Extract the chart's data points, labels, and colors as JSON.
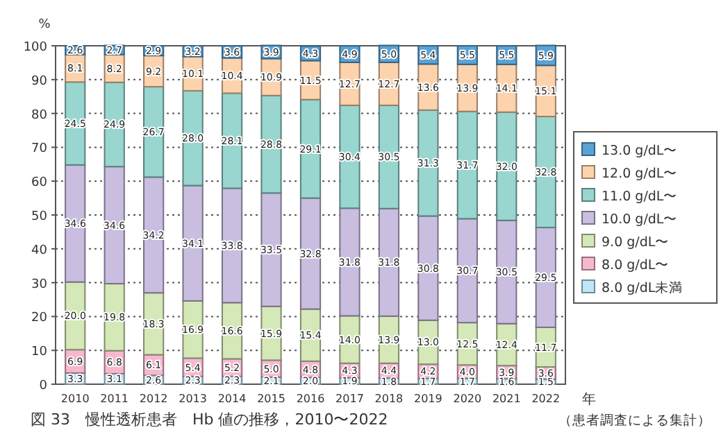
{
  "chart_data": {
    "type": "bar",
    "stacked": true,
    "title": "図 33　慢性透析患者　Hb 値の推移，2010〜2022",
    "xlabel": "年",
    "ylabel": "%",
    "annotations": [
      "（患者調査による集計）"
    ],
    "categories": [
      "2010",
      "2011",
      "2012",
      "2013",
      "2014",
      "2015",
      "2016",
      "2017",
      "2018",
      "2019",
      "2020",
      "2021",
      "2022"
    ],
    "ylim": [
      0,
      100
    ],
    "yticks": [
      0,
      10,
      20,
      30,
      40,
      50,
      60,
      70,
      80,
      90,
      100
    ],
    "grid": "y",
    "legend": "right",
    "series": [
      {
        "name": "8.0 g/dL未満",
        "color": "#bfe6f7",
        "values": [
          3.3,
          3.1,
          2.6,
          2.3,
          2.3,
          2.1,
          2.0,
          1.9,
          1.8,
          1.7,
          1.7,
          1.6,
          1.5
        ],
        "value_labels": [
          "3.3",
          "3.1",
          "2.6",
          "2.3",
          "2.3",
          "2.1",
          "2.0",
          "1.9",
          "1.8",
          "1.7",
          "1.7",
          "1.6",
          "1.5"
        ]
      },
      {
        "name": "8.0 g/dL〜",
        "color": "#f7b8cf",
        "values": [
          6.9,
          6.8,
          6.1,
          5.4,
          5.2,
          5.0,
          4.8,
          4.3,
          4.4,
          4.2,
          4.0,
          3.9,
          3.6
        ],
        "value_labels": [
          "6.9",
          "6.8",
          "6.1",
          "5.4",
          "5.2",
          "5.0",
          "4.8",
          "4.3",
          "4.4",
          "4.2",
          "4.0",
          "3.9",
          "3.6"
        ]
      },
      {
        "name": "9.0 g/dL〜",
        "color": "#d5e8b8",
        "values": [
          20.0,
          19.8,
          18.3,
          16.9,
          16.6,
          15.9,
          15.4,
          14.0,
          13.9,
          13.0,
          12.5,
          12.4,
          11.7
        ],
        "value_labels": [
          "20.0",
          "19.8",
          "18.3",
          "16.9",
          "16.6",
          "15.9",
          "15.4",
          "14.0",
          "13.9",
          "13.0",
          "12.5",
          "12.4",
          "11.7"
        ]
      },
      {
        "name": "10.0 g/dL〜",
        "color": "#c9bde0",
        "values": [
          34.6,
          34.6,
          34.2,
          34.1,
          33.8,
          33.5,
          32.8,
          31.8,
          31.8,
          30.8,
          30.7,
          30.5,
          29.5
        ],
        "value_labels": [
          "34.6",
          "34.6",
          "34.2",
          "34.1",
          "33.8",
          "33.5",
          "32.8",
          "31.8",
          "31.8",
          "30.8",
          "30.7",
          "30.5",
          "29.5"
        ]
      },
      {
        "name": "11.0 g/dL〜",
        "color": "#98d6cf",
        "values": [
          24.5,
          24.9,
          26.7,
          28.0,
          28.1,
          28.8,
          29.1,
          30.4,
          30.5,
          31.3,
          31.7,
          32.0,
          32.8
        ],
        "value_labels": [
          "24.5",
          "24.9",
          "26.7",
          "28.0",
          "28.1",
          "28.8",
          "29.1",
          "30.4",
          "30.5",
          "31.3",
          "31.7",
          "32.0",
          "32.8"
        ]
      },
      {
        "name": "12.0 g/dL〜",
        "color": "#fdd3ad",
        "values": [
          8.1,
          8.2,
          9.2,
          10.1,
          10.4,
          10.9,
          11.5,
          12.7,
          12.7,
          13.6,
          13.9,
          14.1,
          15.1
        ],
        "value_labels": [
          "8.1",
          "8.2",
          "9.2",
          "10.1",
          "10.4",
          "10.9",
          "11.5",
          "12.7",
          "12.7",
          "13.6",
          "13.9",
          "14.1",
          "15.1"
        ]
      },
      {
        "name": "13.0 g/dL〜",
        "color": "#5ba3d6",
        "values": [
          2.6,
          2.7,
          2.9,
          3.2,
          3.6,
          3.9,
          4.3,
          4.9,
          5.0,
          5.4,
          5.5,
          5.5,
          5.9
        ],
        "value_labels": [
          "2.6",
          "2.7",
          "2.9",
          "3.2",
          "3.6",
          "3.9",
          "4.3",
          "4.9",
          "5.0",
          "5.4",
          "5.5",
          "5.5",
          "5.9"
        ]
      }
    ]
  }
}
